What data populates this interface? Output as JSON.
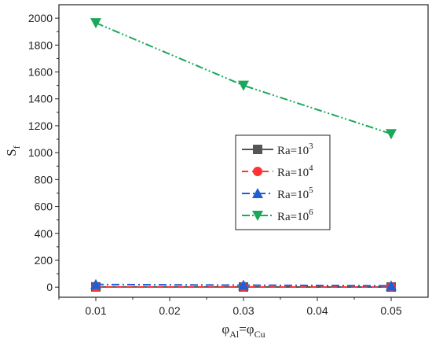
{
  "chart_data": {
    "type": "line",
    "x": [
      0.01,
      0.03,
      0.05
    ],
    "xlim": [
      0.005,
      0.055
    ],
    "ylim": [
      -75,
      2100
    ],
    "xticks": [
      0.01,
      0.02,
      0.03,
      0.04,
      0.05
    ],
    "xtick_labels": [
      "0.01",
      "0.02",
      "0.03",
      "0.04",
      "0.05"
    ],
    "yticks": [
      0,
      200,
      400,
      600,
      800,
      1000,
      1200,
      1400,
      1600,
      1800,
      2000
    ],
    "ytick_labels": [
      "0",
      "200",
      "400",
      "600",
      "800",
      "1000",
      "1200",
      "1400",
      "1600",
      "1800",
      "2000"
    ],
    "xlabel": {
      "main": "φ",
      "sub1": "Al",
      "eq": "=φ",
      "sub2": "Cu"
    },
    "ylabel": {
      "main": "S",
      "sub": "f"
    },
    "grid": false,
    "legend_position": "center-right",
    "series": [
      {
        "name": "Ra=10",
        "sup": "3",
        "values": [
          2,
          1.5,
          1
        ],
        "color": "#555555",
        "marker": "square",
        "dash": "solid"
      },
      {
        "name": "Ra=10",
        "sup": "4",
        "values": [
          1,
          1,
          1
        ],
        "color": "#ff3333",
        "marker": "circle",
        "dash": "dash"
      },
      {
        "name": "Ra=10",
        "sup": "5",
        "values": [
          20,
          15,
          10
        ],
        "color": "#1f5fd6",
        "marker": "triangle-up",
        "dash": "dashdot"
      },
      {
        "name": "Ra=10",
        "sup": "6",
        "values": [
          1965,
          1500,
          1140
        ],
        "color": "#1aa85a",
        "marker": "triangle-down",
        "dash": "dashdotdot"
      }
    ]
  }
}
